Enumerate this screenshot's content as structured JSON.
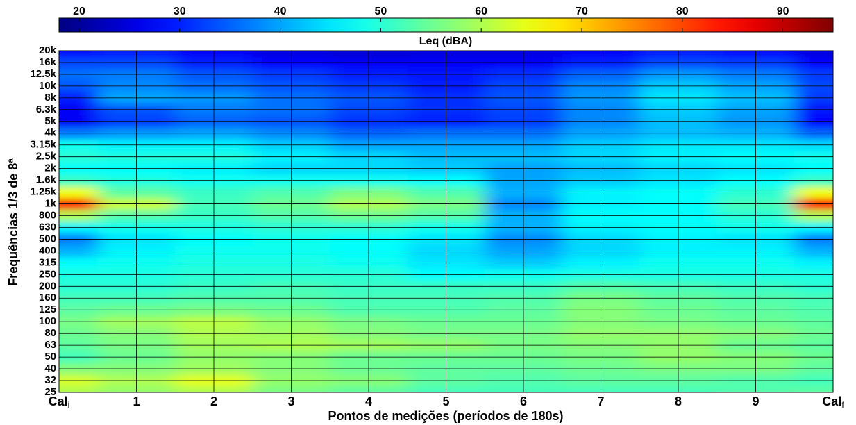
{
  "chart_data": {
    "type": "heatmap",
    "x_label": "Pontos de medições (períodos de 180s)",
    "y_label": "Frequências 1/3 de 8ª",
    "colorbar_label": "Leq (dBA)",
    "colormap": "jet",
    "clim": [
      18,
      95
    ],
    "cticks": [
      20,
      30,
      40,
      50,
      60,
      70,
      80,
      90
    ],
    "grid": true,
    "categories": [
      {
        "text": "Cal",
        "sub": "i"
      },
      "1",
      "2",
      "3",
      "4",
      "5",
      "6",
      "7",
      "8",
      "9",
      {
        "text": "Cal",
        "sub": "f"
      }
    ],
    "y_categories": [
      "25",
      "32",
      "40",
      "50",
      "63",
      "80",
      "100",
      "125",
      "160",
      "200",
      "250",
      "315",
      "400",
      "500",
      "630",
      "800",
      "1k",
      "1.25k",
      "1.6k",
      "2k",
      "2.5k",
      "3.15k",
      "4k",
      "5k",
      "6.3k",
      "8k",
      "10k",
      "12.5k",
      "16k",
      "20k"
    ],
    "z": [
      [
        60,
        58,
        60,
        56,
        54,
        52,
        52,
        52,
        52,
        53,
        54
      ],
      [
        63,
        60,
        64,
        58,
        57,
        54,
        53,
        54,
        54,
        53,
        52
      ],
      [
        57,
        57,
        59,
        57,
        55,
        54,
        54,
        55,
        56,
        56,
        54
      ],
      [
        52,
        55,
        58,
        57,
        55,
        55,
        55,
        56,
        58,
        57,
        55
      ],
      [
        54,
        56,
        59,
        60,
        59,
        58,
        56,
        57,
        58,
        55,
        54
      ],
      [
        55,
        57,
        60,
        59,
        57,
        56,
        56,
        58,
        58,
        57,
        55
      ],
      [
        56,
        59,
        61,
        58,
        56,
        55,
        55,
        57,
        56,
        55,
        54
      ],
      [
        54,
        55,
        56,
        55,
        53,
        53,
        54,
        57,
        55,
        54,
        53
      ],
      [
        52,
        52,
        53,
        53,
        52,
        52,
        53,
        56,
        54,
        53,
        52
      ],
      [
        50,
        50,
        51,
        52,
        51,
        51,
        51,
        53,
        52,
        51,
        50
      ],
      [
        49,
        49,
        50,
        50,
        50,
        47,
        48,
        49,
        49,
        49,
        49
      ],
      [
        47,
        48,
        49,
        49,
        48,
        45,
        43,
        46,
        48,
        48,
        46
      ],
      [
        41,
        46,
        48,
        48,
        47,
        44,
        40,
        44,
        46,
        46,
        41
      ],
      [
        37,
        45,
        47,
        48,
        47,
        45,
        38,
        44,
        46,
        45,
        37
      ],
      [
        46,
        48,
        49,
        50,
        50,
        48,
        41,
        46,
        47,
        48,
        46
      ],
      [
        60,
        53,
        51,
        53,
        55,
        53,
        41,
        47,
        47,
        50,
        60
      ],
      [
        85,
        62,
        52,
        55,
        60,
        56,
        38,
        46,
        47,
        52,
        85
      ],
      [
        65,
        54,
        51,
        53,
        56,
        53,
        41,
        46,
        47,
        50,
        65
      ],
      [
        51,
        49,
        48,
        48,
        48,
        47,
        40,
        43,
        45,
        47,
        51
      ],
      [
        47,
        47,
        46,
        44,
        44,
        43,
        40,
        42,
        44,
        45,
        47
      ],
      [
        50,
        49,
        49,
        46,
        44,
        42,
        42,
        44,
        46,
        47,
        48
      ],
      [
        48,
        46,
        46,
        43,
        40,
        40,
        40,
        43,
        45,
        45,
        44
      ],
      [
        37,
        39,
        40,
        38,
        35,
        36,
        36,
        40,
        42,
        41,
        35
      ],
      [
        27,
        32,
        35,
        34,
        31,
        30,
        32,
        38,
        42,
        39,
        28
      ],
      [
        27,
        34,
        37,
        36,
        33,
        31,
        33,
        38,
        43,
        40,
        29
      ],
      [
        30,
        40,
        39,
        36,
        34,
        31,
        34,
        39,
        45,
        42,
        32
      ],
      [
        34,
        38,
        36,
        34,
        32,
        30,
        33,
        38,
        43,
        40,
        33
      ],
      [
        36,
        37,
        34,
        32,
        30,
        29,
        31,
        35,
        39,
        37,
        32
      ],
      [
        33,
        33,
        30,
        28,
        27,
        27,
        27,
        30,
        33,
        32,
        28
      ],
      [
        28,
        29,
        27,
        25,
        24,
        25,
        25,
        27,
        29,
        28,
        25
      ]
    ]
  }
}
